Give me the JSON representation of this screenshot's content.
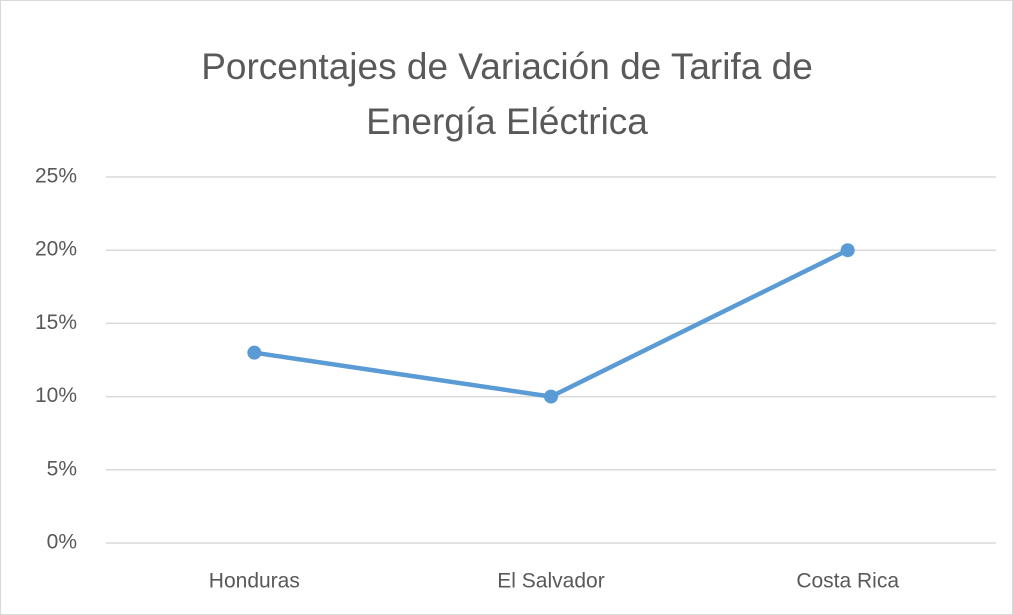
{
  "chart_data": {
    "type": "line",
    "title": "Porcentajes de Variación de Tarifa de Energía Eléctrica",
    "categories": [
      "Honduras",
      "El Salvador",
      "Costa Rica"
    ],
    "values": [
      13,
      10,
      20
    ],
    "color": "#5b9bd5",
    "ylim": [
      0,
      25
    ],
    "yticks": [
      {
        "value": 0,
        "label": "0%"
      },
      {
        "value": 5,
        "label": "5%"
      },
      {
        "value": 10,
        "label": "10%"
      },
      {
        "value": 15,
        "label": "15%"
      },
      {
        "value": 20,
        "label": "20%"
      },
      {
        "value": 25,
        "label": "25%"
      }
    ],
    "grid": true
  }
}
